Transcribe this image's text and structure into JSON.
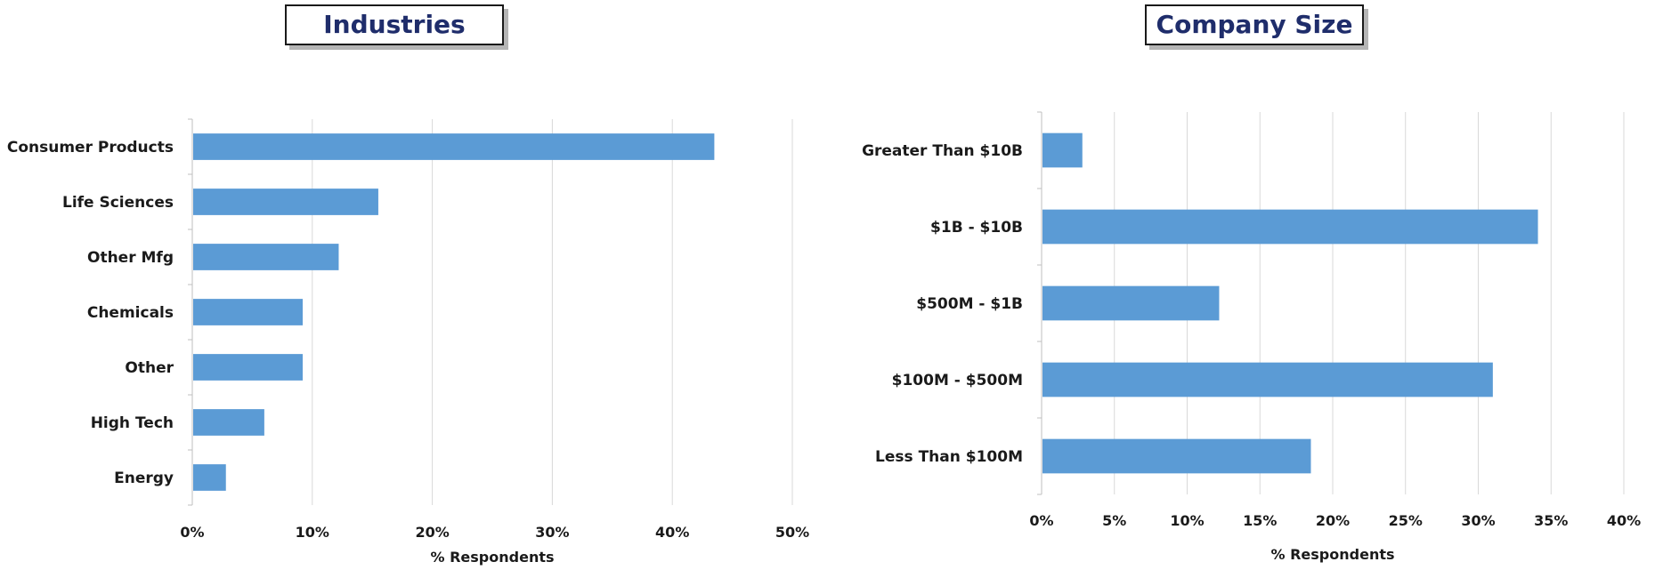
{
  "colors": {
    "bar": "#5b9bd5",
    "grid": "#d9d9d9",
    "title_text": "#1f2d6b"
  },
  "chart_data": [
    {
      "type": "bar",
      "orientation": "horizontal",
      "title": "Industries",
      "categories": [
        "Consumer Products",
        "Life Sciences",
        "Other Mfg",
        "Chemicals",
        "Other",
        "High Tech",
        "Energy"
      ],
      "values": [
        43.5,
        15.5,
        12.2,
        9.2,
        9.2,
        6.0,
        2.8
      ],
      "xlabel": "% Respondents",
      "ylabel": "",
      "xlim": [
        0,
        50
      ],
      "ticks": [
        "0%",
        "10%",
        "20%",
        "30%",
        "40%",
        "50%"
      ],
      "grid": true
    },
    {
      "type": "bar",
      "orientation": "horizontal",
      "title": "Company Size",
      "categories": [
        "Greater Than $10B",
        "$1B - $10B",
        "$500M - $1B",
        "$100M - $500M",
        "Less Than $100M"
      ],
      "values": [
        2.8,
        34.1,
        12.2,
        31.0,
        18.5
      ],
      "xlabel": "% Respondents",
      "ylabel": "",
      "xlim": [
        0,
        40
      ],
      "ticks": [
        "0%",
        "5%",
        "10%",
        "15%",
        "20%",
        "25%",
        "30%",
        "35%",
        "40%"
      ],
      "grid": true
    }
  ]
}
